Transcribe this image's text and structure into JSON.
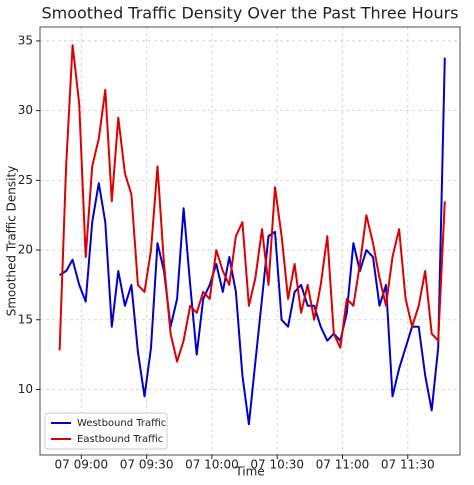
{
  "chart_data": {
    "type": "line",
    "title": "Smoothed Traffic Density Over the Past Three Hours",
    "x_label": "Time",
    "y_label": "Smoothed Traffic Density",
    "x": [
      "07 08:50",
      "07 08:53",
      "07 08:56",
      "07 08:59",
      "07 09:02",
      "07 09:05",
      "07 09:08",
      "07 09:11",
      "07 09:14",
      "07 09:17",
      "07 09:20",
      "07 09:23",
      "07 09:26",
      "07 09:29",
      "07 09:32",
      "07 09:35",
      "07 09:38",
      "07 09:41",
      "07 09:44",
      "07 09:47",
      "07 09:50",
      "07 09:53",
      "07 09:56",
      "07 09:59",
      "07 10:02",
      "07 10:05",
      "07 10:08",
      "07 10:11",
      "07 10:14",
      "07 10:17",
      "07 10:20",
      "07 10:23",
      "07 10:26",
      "07 10:29",
      "07 10:32",
      "07 10:35",
      "07 10:38",
      "07 10:41",
      "07 10:44",
      "07 10:47",
      "07 10:50",
      "07 10:53",
      "07 10:56",
      "07 10:59",
      "07 11:02",
      "07 11:05",
      "07 11:08",
      "07 11:11",
      "07 11:14",
      "07 11:17",
      "07 11:20",
      "07 11:23",
      "07 11:26",
      "07 11:29",
      "07 11:32",
      "07 11:35",
      "07 11:38",
      "07 11:41",
      "07 11:44",
      "07 11:47"
    ],
    "series": [
      {
        "name": "Westbound Traffic",
        "color": "#0000cc",
        "values": [
          18.2,
          18.5,
          19.3,
          17.5,
          16.3,
          22.0,
          24.8,
          22.0,
          14.5,
          18.5,
          16.0,
          17.5,
          12.7,
          9.5,
          13.0,
          20.5,
          18.5,
          14.5,
          16.5,
          23.0,
          17.5,
          12.5,
          16.5,
          17.5,
          19.0,
          17.0,
          19.5,
          17.0,
          11.0,
          7.5,
          12.0,
          16.5,
          21.0,
          21.3,
          15.0,
          14.5,
          17.0,
          17.5,
          16.0,
          16.0,
          14.5,
          13.5,
          14.0,
          13.5,
          15.5,
          20.5,
          18.5,
          20.0,
          19.5,
          16.0,
          17.5,
          9.5,
          11.5,
          13.0,
          14.5,
          14.5,
          11.0,
          8.5,
          13.0,
          33.8
        ]
      },
      {
        "name": "Eastbound Traffic",
        "color": "#dd0000",
        "values": [
          12.8,
          26.0,
          34.7,
          30.5,
          19.5,
          26.0,
          28.0,
          31.5,
          23.5,
          29.5,
          25.5,
          24.0,
          17.5,
          17.0,
          20.0,
          26.0,
          19.0,
          14.0,
          12.0,
          13.5,
          16.0,
          15.5,
          17.0,
          16.5,
          20.0,
          18.5,
          17.5,
          21.0,
          22.0,
          16.0,
          18.0,
          21.5,
          17.5,
          24.5,
          21.0,
          16.5,
          19.0,
          15.5,
          17.5,
          15.0,
          17.5,
          21.0,
          14.0,
          13.0,
          16.5,
          16.0,
          19.0,
          22.5,
          20.5,
          18.0,
          16.0,
          19.5,
          21.5,
          16.5,
          14.5,
          16.0,
          18.5,
          14.0,
          13.5,
          23.5
        ]
      }
    ],
    "xlim": [
      "07 08:41",
      "07 11:54"
    ],
    "xticks": [
      "07 09:00",
      "07 09:30",
      "07 10:00",
      "07 10:30",
      "07 11:00",
      "07 11:30"
    ],
    "ylim": [
      5.3,
      36.0
    ],
    "yticks": [
      10,
      15,
      20,
      25,
      30,
      35
    ],
    "grid": true,
    "legend": "lower left"
  }
}
